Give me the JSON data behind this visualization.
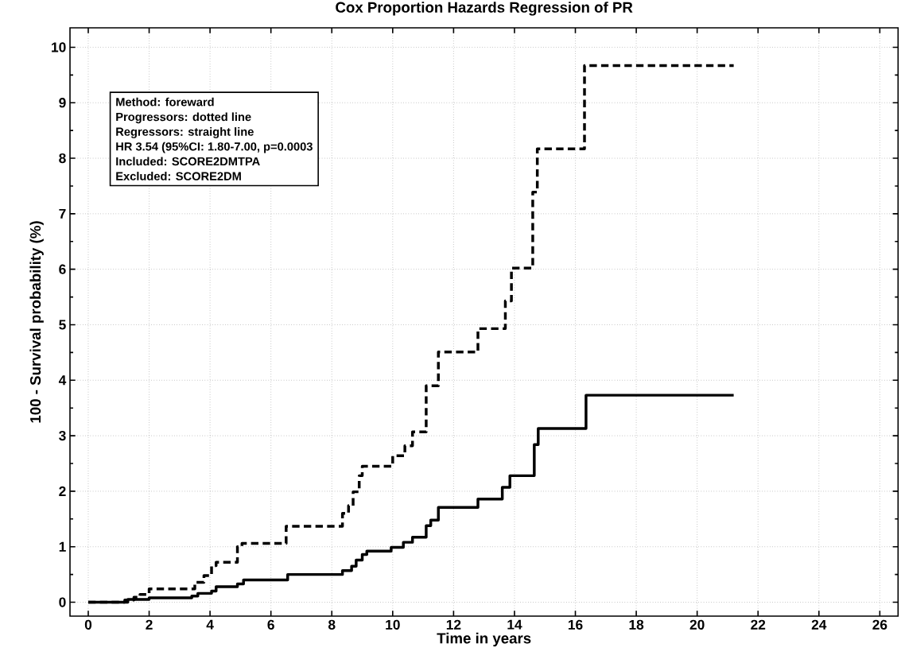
{
  "chart_data": {
    "type": "step",
    "title": "Cox Proportion Hazards Regression of PR",
    "xlabel": "Time in years",
    "ylabel": "100 - Survival probability (%)",
    "xlim": [
      -0.6,
      26.6
    ],
    "ylim": [
      -0.25,
      10.35
    ],
    "xticks": [
      0,
      2,
      4,
      6,
      8,
      10,
      12,
      14,
      16,
      18,
      20,
      22,
      24,
      26
    ],
    "yticks": [
      0,
      1,
      2,
      3,
      4,
      5,
      6,
      7,
      8,
      9,
      10
    ],
    "grid": true,
    "annotations": [
      "Method: foreward",
      "Progressors: dotted line",
      "Regressors: straight line",
      "HR 3.54 (95%CI: 1.80-7.00, p=0.0003",
      "Included: SCORE2DMTPA",
      "Excluded: SCORE2DM"
    ],
    "series": [
      {
        "color": "#000000",
        "line_style": "dashed",
        "x": [
          0,
          1.2,
          1.5,
          1.7,
          2.0,
          3.5,
          3.8,
          4.05,
          4.2,
          4.9,
          5.05,
          6.5,
          8.35,
          8.55,
          8.7,
          8.9,
          9.0,
          10.0,
          10.4,
          10.65,
          11.1,
          11.5,
          12.8,
          13.7,
          13.9,
          14.6,
          14.75,
          16.3,
          21.2
        ],
        "values": [
          0,
          0.04,
          0.09,
          0.14,
          0.24,
          0.36,
          0.48,
          0.66,
          0.72,
          1.0,
          1.06,
          1.37,
          1.6,
          1.74,
          1.99,
          2.28,
          2.45,
          2.64,
          2.82,
          3.07,
          3.9,
          4.51,
          4.93,
          5.43,
          6.02,
          7.39,
          8.17,
          9.67,
          9.67
        ]
      },
      {
        "color": "#000000",
        "line_style": "solid",
        "x": [
          0,
          1.3,
          2.0,
          3.4,
          3.6,
          4.05,
          4.2,
          4.9,
          5.1,
          6.55,
          8.35,
          8.65,
          8.8,
          9.0,
          9.15,
          9.95,
          10.35,
          10.65,
          11.1,
          11.25,
          11.5,
          12.8,
          13.6,
          13.85,
          14.65,
          14.78,
          16.35,
          21.2
        ],
        "values": [
          0,
          0.05,
          0.08,
          0.11,
          0.16,
          0.2,
          0.28,
          0.33,
          0.4,
          0.5,
          0.57,
          0.65,
          0.76,
          0.86,
          0.92,
          0.99,
          1.08,
          1.17,
          1.38,
          1.48,
          1.71,
          1.86,
          2.07,
          2.28,
          2.84,
          3.13,
          3.73,
          3.73
        ]
      }
    ]
  }
}
